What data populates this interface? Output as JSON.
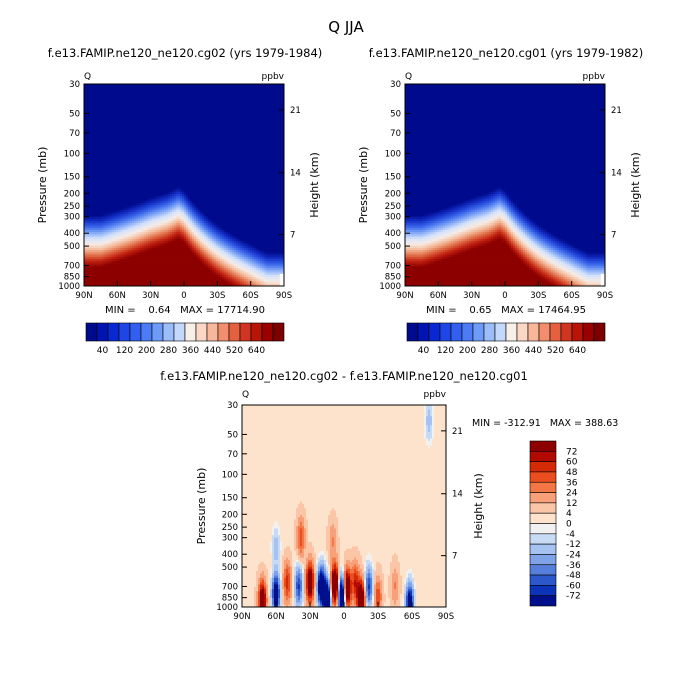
{
  "page_title": "Q JJA",
  "colors": {
    "bg": "#ffffff",
    "text": "#000000",
    "deep_blue": "#000a8c",
    "deep_red": "#8c0000"
  },
  "panels": {
    "top_left": {
      "title": "f.e13.FAMIP.ne120_ne120.cg02 (yrs 1979-1984)",
      "var_label": "Q",
      "units_label": "ppbv",
      "stats": "MIN =    0.64   MAX = 17714.90"
    },
    "top_right": {
      "title": "f.e13.FAMIP.ne120_ne120.cg01 (yrs 1979-1982)",
      "var_label": "Q",
      "units_label": "ppbv",
      "stats": "MIN =    0.65   MAX = 17464.95"
    },
    "bottom": {
      "title": "f.e13.FAMIP.ne120_ne120.cg02 - f.e13.FAMIP.ne120_ne120.cg01",
      "var_label": "Q",
      "units_label": "ppbv",
      "stats": "MIN = -312.91   MAX = 388.63"
    }
  },
  "axes": {
    "ylabel": "Pressure (mb)",
    "y2label": "Height (km)",
    "pressure_ticks": [
      "30",
      "50",
      "70",
      "100",
      "150",
      "200",
      "250",
      "300",
      "400",
      "500",
      "700",
      "850",
      "1000"
    ],
    "height_ticks": [
      "21",
      "14",
      "7"
    ],
    "lat_ticks_top": [
      "90N",
      "60N",
      "30N",
      "0",
      "30S",
      "60S",
      "90S"
    ],
    "lat_ticks_bottom": [
      "90N",
      "60N",
      "30N",
      "0",
      "30S",
      "60S",
      "90S"
    ]
  },
  "colorbar_top": {
    "labels": [
      "40",
      "120",
      "200",
      "280",
      "360",
      "440",
      "520",
      "640"
    ],
    "colors": [
      "#000a8c",
      "#0014b4",
      "#0a28d2",
      "#1e46e6",
      "#325ff0",
      "#4b7cf5",
      "#6e9af8",
      "#9cbcfa",
      "#c4d8fc",
      "#f8efe9",
      "#fcd7c4",
      "#f9b79a",
      "#f28e6e",
      "#e4603f",
      "#cf3520",
      "#b81408",
      "#9a0000",
      "#7d0000"
    ]
  },
  "colorbar_bottom": {
    "labels": [
      "72",
      "60",
      "48",
      "36",
      "24",
      "12",
      "4",
      "0",
      "-4",
      "-12",
      "-24",
      "-36",
      "-48",
      "-60",
      "-72"
    ],
    "colors": [
      "#8c0000",
      "#b30a00",
      "#d42a05",
      "#ea4e20",
      "#f27745",
      "#f7a07a",
      "#fbc6a7",
      "#fde2cc",
      "#f1f1f1",
      "#c8dbf5",
      "#a6c2f0",
      "#7fa2e8",
      "#567fdc",
      "#2d58cc",
      "#0c34b8",
      "#000f8c"
    ]
  },
  "chart_data": [
    {
      "type": "heatmap",
      "title": "f.e13.FAMIP.ne120_ne120.cg02 (yrs 1979-1984)",
      "variable": "Q",
      "units": "ppbv",
      "ylabel": "Pressure (mb)",
      "y2label": "Height (km)",
      "x_range": [
        "90N",
        "90S"
      ],
      "y_range_mb": [
        1000,
        30
      ],
      "y_scale": "log",
      "min": 0.64,
      "max": 17714.9,
      "moist_layer_top_mb": {
        "lat": [
          75,
          60,
          45,
          30,
          15,
          5,
          0,
          -15,
          -30,
          -45,
          -60,
          -75
        ],
        "pressure": [
          460,
          420,
          380,
          340,
          310,
          280,
          300,
          420,
          540,
          650,
          760,
          880
        ]
      }
    },
    {
      "type": "heatmap",
      "title": "f.e13.FAMIP.ne120_ne120.cg01 (yrs 1979-1982)",
      "variable": "Q",
      "units": "ppbv",
      "ylabel": "Pressure (mb)",
      "y2label": "Height (km)",
      "x_range": [
        "90N",
        "90S"
      ],
      "y_range_mb": [
        1000,
        30
      ],
      "y_scale": "log",
      "min": 0.65,
      "max": 17464.95,
      "moist_layer_top_mb": {
        "lat": [
          75,
          60,
          45,
          30,
          15,
          5,
          0,
          -15,
          -30,
          -45,
          -60,
          -75
        ],
        "pressure": [
          460,
          420,
          380,
          340,
          310,
          280,
          300,
          420,
          540,
          650,
          760,
          880
        ]
      }
    },
    {
      "type": "heatmap",
      "title": "f.e13.FAMIP.ne120_ne120.cg02 - f.e13.FAMIP.ne120_ne120.cg01",
      "variable": "Q",
      "units": "ppbv",
      "ylabel": "Pressure (mb)",
      "y2label": "Height (km)",
      "x_range": [
        "90N",
        "90S"
      ],
      "y_range_mb": [
        1000,
        30
      ],
      "y_scale": "log",
      "min": -312.91,
      "max": 388.63,
      "background_value": 3,
      "anomalies": [
        {
          "lat": 72,
          "p": 900,
          "v": 60
        },
        {
          "lat": 60,
          "p": 800,
          "v": -60
        },
        {
          "lat": 50,
          "p": 650,
          "v": 30
        },
        {
          "lat": 40,
          "p": 700,
          "v": -36
        },
        {
          "lat": 30,
          "p": 650,
          "v": 60
        },
        {
          "lat": 20,
          "p": 700,
          "v": -72
        },
        {
          "lat": 15,
          "p": 880,
          "v": -72
        },
        {
          "lat": 8,
          "p": 680,
          "v": 72
        },
        {
          "lat": 2,
          "p": 820,
          "v": -72
        },
        {
          "lat": -3,
          "p": 720,
          "v": 60
        },
        {
          "lat": -10,
          "p": 650,
          "v": 30
        },
        {
          "lat": -15,
          "p": 900,
          "v": 72
        },
        {
          "lat": -22,
          "p": 700,
          "v": -36
        },
        {
          "lat": -30,
          "p": 850,
          "v": 24
        },
        {
          "lat": -45,
          "p": 700,
          "v": 12
        },
        {
          "lat": -58,
          "p": 950,
          "v": -60
        },
        {
          "lat": 60,
          "p": 350,
          "v": -12
        },
        {
          "lat": 38,
          "p": 300,
          "v": 24
        },
        {
          "lat": 10,
          "p": 320,
          "v": 12
        },
        {
          "lat": -75,
          "p": 40,
          "v": -12
        }
      ]
    }
  ]
}
